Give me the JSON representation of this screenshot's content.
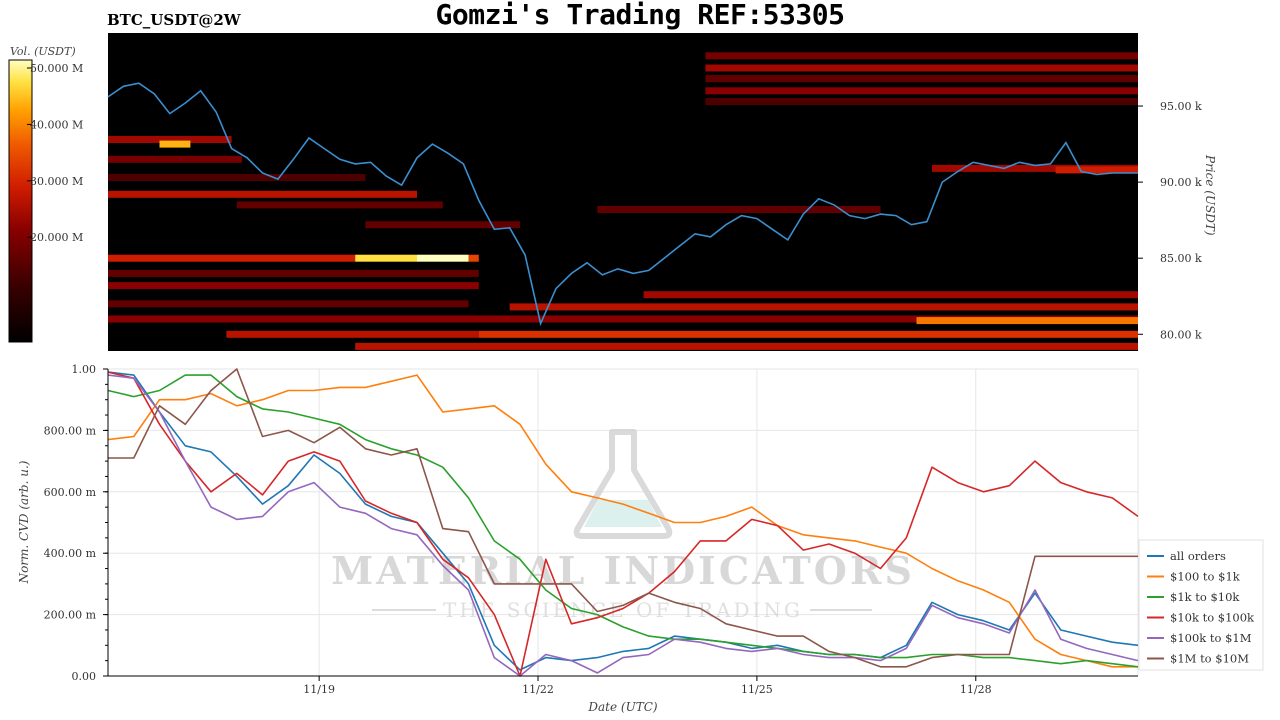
{
  "header": {
    "title": "Gomzi's Trading REF:53305",
    "symbol": "BTC_USDT@2W"
  },
  "watermark": {
    "line1": "MATERIAL INDICATORS",
    "line2": "THE SCIENCE OF TRADING"
  },
  "chart_data": [
    {
      "type": "heatmap",
      "title": "",
      "ylabel": "Price (USDT)",
      "ylim": [
        78900,
        99800
      ],
      "y_ticks": [
        {
          "value": 80000,
          "label": "80.00 k"
        },
        {
          "value": 85000,
          "label": "85.00 k"
        },
        {
          "value": 90000,
          "label": "90.00 k"
        },
        {
          "value": 95000,
          "label": "95.00 k"
        }
      ],
      "colorbar": {
        "label": "Vol. (USDT)",
        "range": [
          0,
          50000000
        ],
        "ticks": [
          {
            "value": 20000000,
            "label": "20.000 M"
          },
          {
            "value": 30000000,
            "label": "30.000 M"
          },
          {
            "value": 40000000,
            "label": "40.000 M"
          },
          {
            "value": 50000000,
            "label": "50.000 M"
          }
        ],
        "colors": [
          "#000000",
          "#3a0000",
          "#8a0000",
          "#d01c00",
          "#f05a00",
          "#ffa000",
          "#ffe040",
          "#ffffc0"
        ]
      },
      "bands": [
        {
          "price": 98300,
          "start": 11.6,
          "end": 20.0,
          "intensity": 0.35
        },
        {
          "price": 97500,
          "start": 11.6,
          "end": 20.0,
          "intensity": 0.45
        },
        {
          "price": 96800,
          "start": 11.6,
          "end": 20.0,
          "intensity": 0.3
        },
        {
          "price": 96000,
          "start": 11.6,
          "end": 20.0,
          "intensity": 0.4
        },
        {
          "price": 95300,
          "start": 11.6,
          "end": 20.0,
          "intensity": 0.25
        },
        {
          "price": 92800,
          "start": 0.0,
          "end": 2.4,
          "intensity": 0.45
        },
        {
          "price": 92500,
          "start": 1.0,
          "end": 1.6,
          "intensity": 0.85
        },
        {
          "price": 91500,
          "start": 0.0,
          "end": 2.6,
          "intensity": 0.35
        },
        {
          "price": 90300,
          "start": 0.0,
          "end": 5.0,
          "intensity": 0.25
        },
        {
          "price": 89200,
          "start": 0.0,
          "end": 6.0,
          "intensity": 0.5
        },
        {
          "price": 90900,
          "start": 16.0,
          "end": 20.0,
          "intensity": 0.45
        },
        {
          "price": 90800,
          "start": 18.4,
          "end": 20.0,
          "intensity": 0.55
        },
        {
          "price": 88500,
          "start": 2.5,
          "end": 6.5,
          "intensity": 0.3
        },
        {
          "price": 88200,
          "start": 9.5,
          "end": 15.0,
          "intensity": 0.3
        },
        {
          "price": 87200,
          "start": 5.0,
          "end": 8.0,
          "intensity": 0.3
        },
        {
          "price": 85000,
          "start": 0.0,
          "end": 3.0,
          "intensity": 0.55
        },
        {
          "price": 85000,
          "start": 3.0,
          "end": 4.8,
          "intensity": 0.55
        },
        {
          "price": 85000,
          "start": 4.8,
          "end": 6.0,
          "intensity": 0.92
        },
        {
          "price": 85000,
          "start": 6.0,
          "end": 7.0,
          "intensity": 1.0
        },
        {
          "price": 85000,
          "start": 7.0,
          "end": 7.2,
          "intensity": 0.65
        },
        {
          "price": 84000,
          "start": 0.0,
          "end": 7.2,
          "intensity": 0.3
        },
        {
          "price": 83200,
          "start": 0.0,
          "end": 7.2,
          "intensity": 0.4
        },
        {
          "price": 82600,
          "start": 10.4,
          "end": 20.0,
          "intensity": 0.45
        },
        {
          "price": 82000,
          "start": 0.0,
          "end": 7.0,
          "intensity": 0.3
        },
        {
          "price": 81800,
          "start": 7.8,
          "end": 20.0,
          "intensity": 0.5
        },
        {
          "price": 81000,
          "start": 0.0,
          "end": 20.0,
          "intensity": 0.4
        },
        {
          "price": 80900,
          "start": 15.7,
          "end": 20.0,
          "intensity": 0.75
        },
        {
          "price": 80000,
          "start": 2.3,
          "end": 7.2,
          "intensity": 0.5
        },
        {
          "price": 80000,
          "start": 7.2,
          "end": 20.0,
          "intensity": 0.6
        },
        {
          "price": 79200,
          "start": 4.8,
          "end": 20.0,
          "intensity": 0.5
        }
      ],
      "price_series": {
        "name": "",
        "x_days": [
          0,
          0.3,
          0.6,
          0.9,
          1.2,
          1.5,
          1.8,
          2.1,
          2.4,
          2.7,
          3.0,
          3.3,
          3.6,
          3.9,
          4.2,
          4.5,
          4.8,
          5.1,
          5.4,
          5.7,
          6.0,
          6.3,
          6.6,
          6.9,
          7.2,
          7.5,
          7.8,
          8.1,
          8.4,
          8.7,
          9.0,
          9.3,
          9.6,
          9.9,
          10.2,
          10.5,
          10.8,
          11.1,
          11.4,
          11.7,
          12.0,
          12.3,
          12.6,
          12.9,
          13.2,
          13.5,
          13.8,
          14.1,
          14.4,
          14.7,
          15.0,
          15.3,
          15.6,
          15.9,
          16.2,
          16.5,
          16.8,
          17.1,
          17.4,
          17.7,
          18.0,
          18.3,
          18.6,
          18.9,
          19.2,
          19.5,
          19.8,
          20.0
        ],
        "prices": [
          95600,
          96300,
          96500,
          95800,
          94500,
          95200,
          96000,
          94600,
          92200,
          91600,
          90600,
          90200,
          91500,
          92900,
          92200,
          91500,
          91200,
          91300,
          90400,
          89800,
          91600,
          92500,
          91900,
          91200,
          88800,
          86900,
          87000,
          85200,
          80700,
          83000,
          84000,
          84700,
          83900,
          84300,
          84000,
          84200,
          85000,
          85800,
          86600,
          86400,
          87200,
          87800,
          87600,
          86900,
          86200,
          87900,
          88900,
          88500,
          87800,
          87600,
          87900,
          87800,
          87200,
          87400,
          90000,
          90700,
          91300,
          91100,
          90900,
          91300,
          91100,
          91200,
          92600,
          90700,
          90500,
          90600,
          90600,
          90600
        ]
      }
    },
    {
      "type": "line",
      "title": "",
      "xlabel": "Date (UTC)",
      "ylabel": "Norm. CVD (arb. u.)",
      "ylim": [
        0,
        1
      ],
      "xlim": [
        0,
        20
      ],
      "x_ticks": [
        {
          "day": 4.1,
          "label": "11/19"
        },
        {
          "day": 8.35,
          "label": "11/22"
        },
        {
          "day": 12.6,
          "label": "11/25"
        },
        {
          "day": 16.85,
          "label": "11/28"
        }
      ],
      "y_ticks": [
        {
          "value": 0,
          "label": "0.00"
        },
        {
          "value": 0.2,
          "label": "200.00 m"
        },
        {
          "value": 0.4,
          "label": "400.00 m"
        },
        {
          "value": 0.6,
          "label": "600.00 m"
        },
        {
          "value": 0.8,
          "label": "800.00 m"
        },
        {
          "value": 1.0,
          "label": "1.00"
        }
      ],
      "legend_position": "right",
      "x": [
        0,
        0.5,
        1,
        1.5,
        2,
        2.5,
        3,
        3.5,
        4,
        4.5,
        5,
        5.5,
        6,
        6.5,
        7,
        7.5,
        8,
        8.5,
        9,
        9.5,
        10,
        10.5,
        11,
        11.5,
        12,
        12.5,
        13,
        13.5,
        14,
        14.5,
        15,
        15.5,
        16,
        16.5,
        17,
        17.5,
        18,
        18.5,
        19,
        19.5,
        20
      ],
      "series": [
        {
          "name": "all orders",
          "color": "#1f77b4",
          "values": [
            0.99,
            0.98,
            0.86,
            0.75,
            0.73,
            0.65,
            0.56,
            0.62,
            0.72,
            0.66,
            0.56,
            0.52,
            0.5,
            0.4,
            0.3,
            0.1,
            0.02,
            0.06,
            0.05,
            0.06,
            0.08,
            0.09,
            0.13,
            0.12,
            0.11,
            0.09,
            0.1,
            0.08,
            0.07,
            0.07,
            0.06,
            0.1,
            0.24,
            0.2,
            0.18,
            0.15,
            0.27,
            0.15,
            0.13,
            0.11,
            0.1
          ]
        },
        {
          "name": "$100 to $1k",
          "color": "#ff7f0e",
          "values": [
            0.77,
            0.78,
            0.9,
            0.9,
            0.92,
            0.88,
            0.9,
            0.93,
            0.93,
            0.94,
            0.94,
            0.96,
            0.98,
            0.86,
            0.87,
            0.88,
            0.82,
            0.69,
            0.6,
            0.58,
            0.56,
            0.53,
            0.5,
            0.5,
            0.52,
            0.55,
            0.49,
            0.46,
            0.45,
            0.44,
            0.42,
            0.4,
            0.35,
            0.31,
            0.28,
            0.24,
            0.12,
            0.07,
            0.05,
            0.03,
            0.03
          ]
        },
        {
          "name": "$1k to $10k",
          "color": "#2ca02c",
          "values": [
            0.93,
            0.91,
            0.93,
            0.98,
            0.98,
            0.91,
            0.87,
            0.86,
            0.84,
            0.82,
            0.77,
            0.74,
            0.72,
            0.68,
            0.58,
            0.44,
            0.38,
            0.28,
            0.22,
            0.2,
            0.16,
            0.13,
            0.12,
            0.12,
            0.11,
            0.1,
            0.09,
            0.08,
            0.07,
            0.07,
            0.06,
            0.06,
            0.07,
            0.07,
            0.06,
            0.06,
            0.05,
            0.04,
            0.05,
            0.04,
            0.03
          ]
        },
        {
          "name": "$10k to $100k",
          "color": "#d62728",
          "values": [
            0.99,
            0.97,
            0.82,
            0.7,
            0.6,
            0.66,
            0.59,
            0.7,
            0.73,
            0.7,
            0.57,
            0.53,
            0.5,
            0.38,
            0.32,
            0.2,
            0.0,
            0.38,
            0.17,
            0.19,
            0.22,
            0.27,
            0.34,
            0.44,
            0.44,
            0.51,
            0.49,
            0.41,
            0.43,
            0.4,
            0.35,
            0.45,
            0.68,
            0.63,
            0.6,
            0.62,
            0.7,
            0.63,
            0.6,
            0.58,
            0.52
          ]
        },
        {
          "name": "$100k to $1M",
          "color": "#9467bd",
          "values": [
            0.98,
            0.97,
            0.86,
            0.7,
            0.55,
            0.51,
            0.52,
            0.6,
            0.63,
            0.55,
            0.53,
            0.48,
            0.46,
            0.36,
            0.28,
            0.06,
            0.0,
            0.07,
            0.05,
            0.01,
            0.06,
            0.07,
            0.12,
            0.11,
            0.09,
            0.08,
            0.09,
            0.07,
            0.06,
            0.06,
            0.05,
            0.09,
            0.23,
            0.19,
            0.17,
            0.14,
            0.28,
            0.12,
            0.09,
            0.07,
            0.05
          ]
        },
        {
          "name": "$1M to $10M",
          "color": "#8c564b",
          "values": [
            0.71,
            0.71,
            0.88,
            0.82,
            0.93,
            1.0,
            0.78,
            0.8,
            0.76,
            0.81,
            0.74,
            0.72,
            0.74,
            0.48,
            0.47,
            0.3,
            0.3,
            0.3,
            0.3,
            0.21,
            0.23,
            0.27,
            0.24,
            0.22,
            0.17,
            0.15,
            0.13,
            0.13,
            0.08,
            0.06,
            0.03,
            0.03,
            0.06,
            0.07,
            0.07,
            0.07,
            0.39,
            0.39,
            0.39,
            0.39,
            0.39
          ]
        }
      ]
    }
  ]
}
